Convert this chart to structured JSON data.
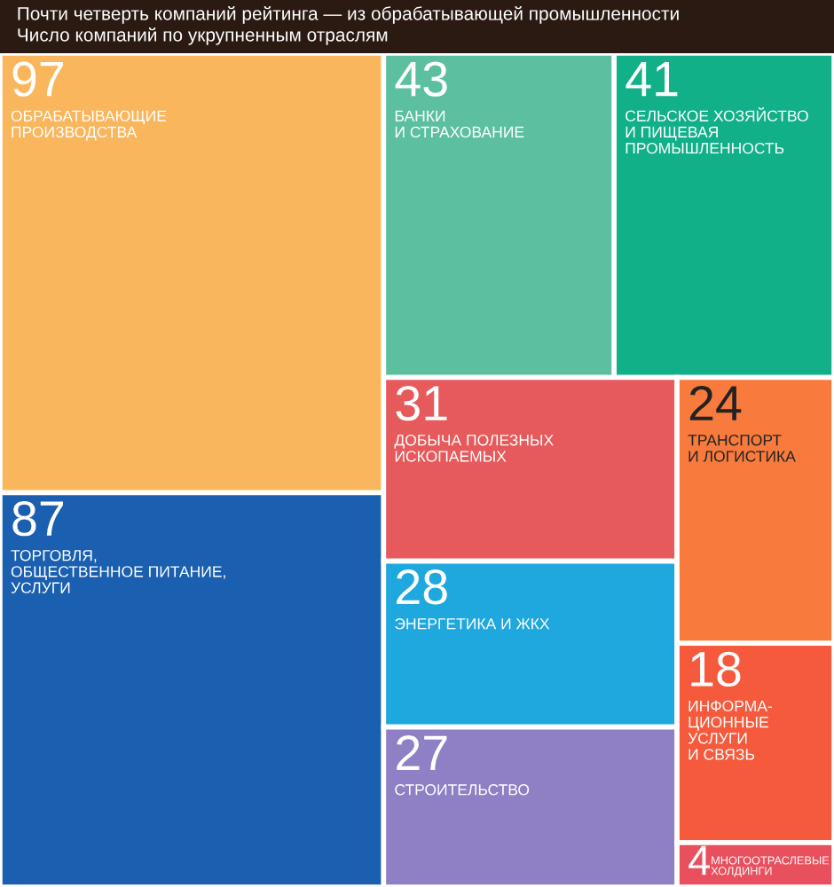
{
  "chart_data": {
    "type": "other",
    "title": "Почти четверть компаний рейтинга — из обрабатывающей промышленности",
    "subtitle": "Число компаний по укрупненным отраслям",
    "categories": [
      "ОБРАБАТЫВАЮЩИЕ\nПРОИЗВОДСТВА",
      "ТОРГОВЛЯ,\nОБЩЕСТВЕННОЕ ПИТАНИЕ,\nУСЛУГИ",
      "БАНКИ\nИ СТРАХОВАНИЕ",
      "СЕЛЬСКОЕ ХОЗЯЙСТВО\nИ ПИЩЕВАЯ\nПРОМЫШЛЕННОСТЬ",
      "ДОБЫЧА ПОЛЕЗНЫХ\nИСКОПАЕМЫХ",
      "ЭНЕРГЕТИКА И ЖКХ",
      "СТРОИТЕЛЬСТВО",
      "ТРАНСПОРТ\nИ ЛОГИСТИКА",
      "ИНФОРМА-\nЦИОННЫЕ\nУСЛУГИ\nИ СВЯЗЬ",
      "МНОГООТРАСЛЕВЫЕ\nХОЛДИНГИ"
    ],
    "values": [
      97,
      87,
      43,
      41,
      31,
      28,
      27,
      24,
      18,
      4
    ],
    "data_labels": true,
    "colors": [
      "#f9b65c",
      "#1b5fb0",
      "#5cc0a0",
      "#12b089",
      "#e65a5c",
      "#1ea8de",
      "#8f7fc4",
      "#f87a3c",
      "#f65a3c",
      "#e9505e"
    ]
  }
}
